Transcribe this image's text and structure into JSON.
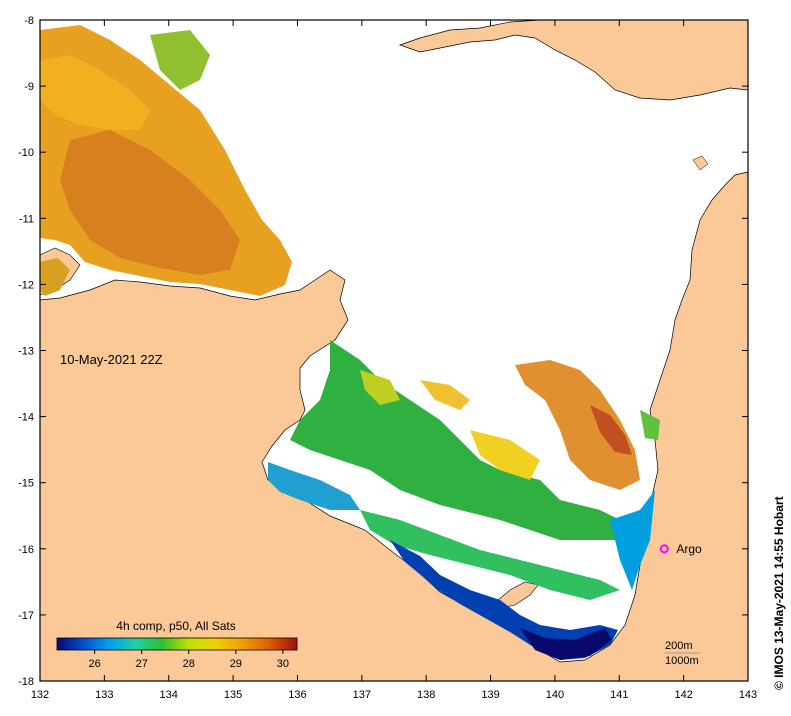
{
  "map": {
    "date_label": "10-May-2021 22Z",
    "credit": "© IMOS 13-May-2021 14:55 Hobart",
    "colorbar": {
      "title": "4h comp, p50, All Sats",
      "tick_labels": [
        "26",
        "27",
        "28",
        "29",
        "30"
      ],
      "colors": [
        "#0a0a6e",
        "#0050d0",
        "#00a0f0",
        "#20d0a0",
        "#30c030",
        "#c0e000",
        "#f0d000",
        "#f0a000",
        "#e06000",
        "#a01010"
      ]
    },
    "lon_ticks": [
      "132",
      "133",
      "134",
      "135",
      "136",
      "137",
      "138",
      "139",
      "140",
      "141",
      "142",
      "143"
    ],
    "lat_ticks": [
      "-8",
      "-9",
      "-10",
      "-11",
      "-12",
      "-13",
      "-14",
      "-15",
      "-16",
      "-17",
      "-18"
    ],
    "marker": {
      "label": "Argo",
      "lon": 141.7,
      "lat": -16.0,
      "color": "#ff00ff"
    },
    "scale_labels": [
      "200m",
      "1000m"
    ],
    "colors": {
      "land": "#fbc898",
      "ocean": "#ffffff",
      "frame": "#000000"
    }
  }
}
